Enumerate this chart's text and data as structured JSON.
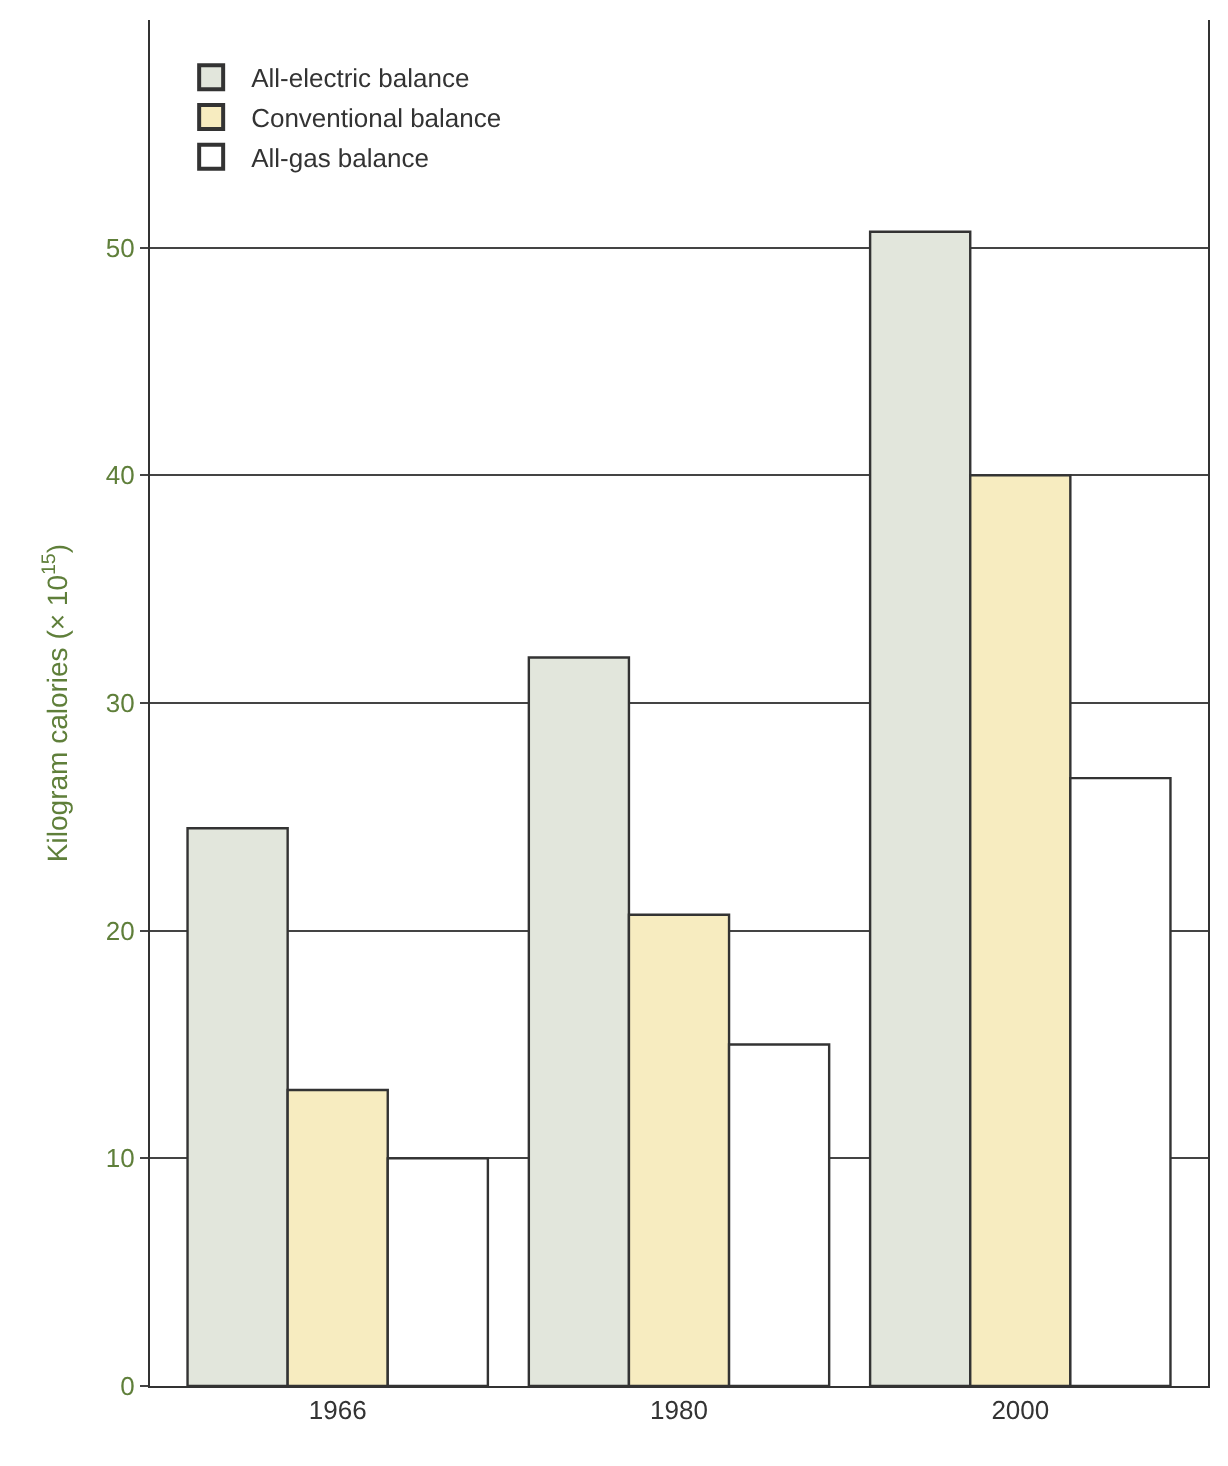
{
  "chart_data": {
    "type": "bar",
    "ylabel": "Kilogram calories (× 10$^{15}$)",
    "categories": [
      "1966",
      "1980",
      "2000"
    ],
    "series": [
      {
        "name": "All-electric balance",
        "color": "#e2e6dc",
        "values": [
          24.5,
          32,
          50.7
        ]
      },
      {
        "name": "Conventional balance",
        "color": "#f7ecc0",
        "values": [
          13,
          20.7,
          40
        ]
      },
      {
        "name": "All-gas balance",
        "color": "#ffffff",
        "values": [
          10,
          15,
          26.7
        ]
      }
    ],
    "ylim": [
      0,
      60
    ],
    "yticks": [
      0,
      10,
      20,
      30,
      40,
      50
    ],
    "grid": "y",
    "legend": "top left"
  }
}
